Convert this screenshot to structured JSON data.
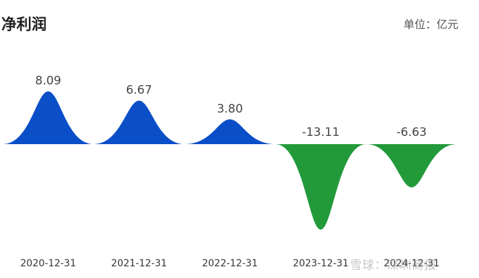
{
  "header": {
    "title": "净利润",
    "unit": "单位：亿元"
  },
  "watermark": "雪球：深圳商报",
  "colors": {
    "positive": "#0a4fc8",
    "negative": "#229a3a"
  },
  "chart_data": {
    "type": "area",
    "title": "净利润",
    "unit": "亿元",
    "categories": [
      "2020-12-31",
      "2021-12-31",
      "2022-12-31",
      "2023-12-31",
      "2024-12-31"
    ],
    "values": [
      8.09,
      6.67,
      3.8,
      -13.11,
      -6.63
    ],
    "value_labels": [
      "8.09",
      "6.67",
      "3.80",
      "-13.11",
      "-6.63"
    ],
    "grid": false,
    "legend": "none"
  }
}
